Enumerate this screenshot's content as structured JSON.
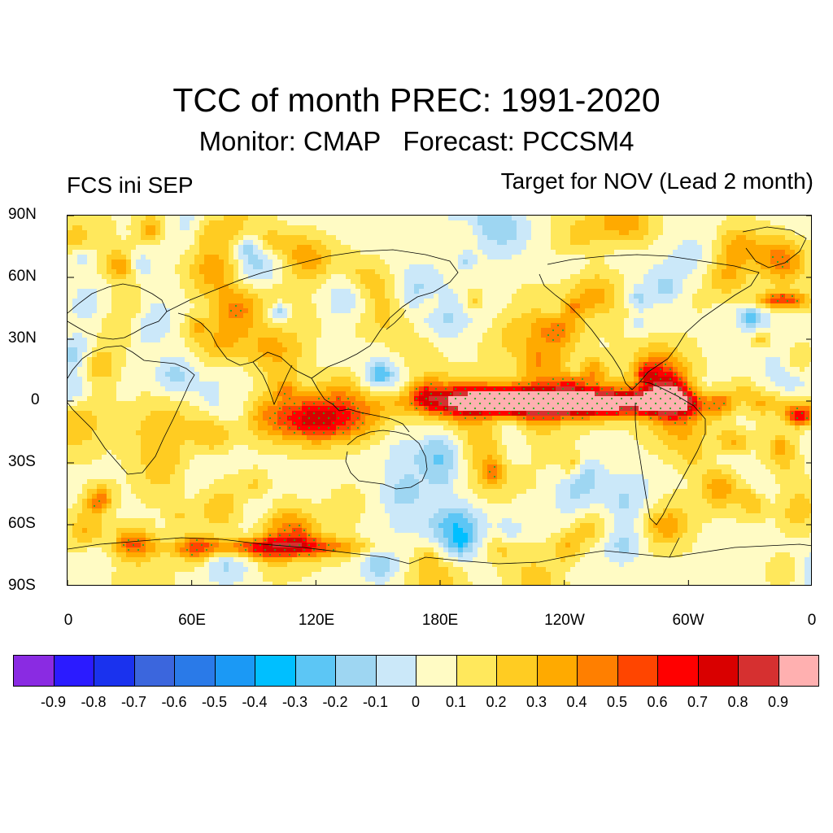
{
  "figure": {
    "title": "TCC of month PREC: 1991-2020",
    "subtitle": "Monitor: CMAP   Forecast: PCCSM4",
    "left_label": "FCS ini SEP",
    "right_label": "Target for NOV (Lead 2 month)"
  },
  "axes": {
    "lat_ticks": [
      "90N",
      "60N",
      "30N",
      "0",
      "30S",
      "60S",
      "90S"
    ],
    "lon_ticks": [
      "0",
      "60E",
      "120E",
      "180E",
      "120W",
      "60W",
      "0"
    ]
  },
  "colorbar": {
    "labels": [
      "-0.9",
      "-0.8",
      "-0.7",
      "-0.6",
      "-0.5",
      "-0.4",
      "-0.3",
      "-0.2",
      "-0.1",
      "0",
      "0.1",
      "0.2",
      "0.3",
      "0.4",
      "0.5",
      "0.6",
      "0.7",
      "0.8",
      "0.9"
    ],
    "colors": [
      "#8a2be2",
      "#2b1bff",
      "#1a32ee",
      "#3b66dd",
      "#2a7ae8",
      "#1b99f5",
      "#00bfff",
      "#5cc6f5",
      "#9ed6f2",
      "#cbe8f9",
      "#fffbc4",
      "#ffe85c",
      "#ffcc22",
      "#ffaa00",
      "#ff7f00",
      "#ff4500",
      "#ff0000",
      "#d90000",
      "#d63030",
      "#ffb0b0"
    ]
  },
  "map": {
    "projection": "cylindrical-equidistant",
    "lon_range": [
      0,
      360
    ],
    "lat_range": [
      -90,
      90
    ],
    "background_color": "#fff7c2",
    "coastline_color": "#000000",
    "stipple_color": "#22aa22"
  }
}
